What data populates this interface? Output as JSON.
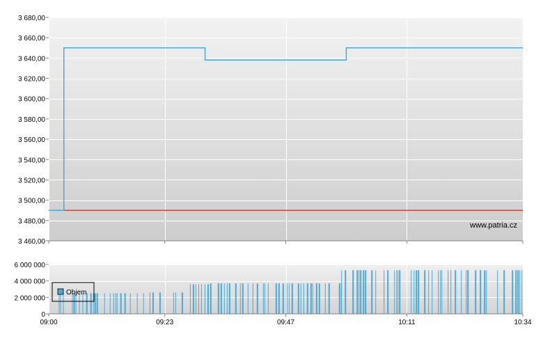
{
  "chart_data": [
    {
      "type": "line",
      "panel": "price",
      "x": [
        "09:00",
        "09:02",
        "09:03",
        "09:10",
        "09:20",
        "09:30",
        "09:31",
        "09:40",
        "09:50",
        "09:58",
        "09:59",
        "10:10",
        "10:20",
        "10:34"
      ],
      "series": [
        {
          "name": "",
          "color": "#4aa9d6",
          "values": [
            3490,
            3490,
            3650,
            3650,
            3650,
            3650,
            3638,
            3638,
            3638,
            3638,
            3650,
            3650,
            3650,
            3650
          ]
        },
        {
          "name": "",
          "color": "#d04a3a",
          "values": [
            3490,
            3490,
            3490,
            3490,
            3490,
            3490,
            3490,
            3490,
            3490,
            3490,
            3490,
            3490,
            3490,
            3490
          ]
        }
      ],
      "xlim": [
        "09:00",
        "10:34"
      ],
      "ylim": [
        3460,
        3680
      ],
      "yticks": [
        "3 460,00",
        "3 480,00",
        "3 500,00",
        "3 520,00",
        "3 540,00",
        "3 560,00",
        "3 580,00",
        "3 600,00",
        "3 620,00",
        "3 640,00",
        "3 660,00",
        "3 680,00"
      ],
      "ytick_values": [
        3460,
        3480,
        3500,
        3520,
        3540,
        3560,
        3580,
        3600,
        3620,
        3640,
        3660,
        3680
      ],
      "xticks": [
        "09:00",
        "09:23",
        "09:47",
        "10:11",
        "10:34"
      ],
      "grid": true,
      "annotation": "www.patria.cz"
    },
    {
      "type": "bar",
      "panel": "volume",
      "legend": {
        "label": "Objem",
        "placement": "left"
      },
      "series_color": "#4aa9d6",
      "segments": [
        {
          "from": "09:02",
          "to": "09:07",
          "value": 2500000
        },
        {
          "from": "09:07",
          "to": "09:20",
          "value": 2500000
        },
        {
          "from": "09:20",
          "to": "09:28",
          "value": 2600000
        },
        {
          "from": "09:28",
          "to": "09:32",
          "value": 3600000
        },
        {
          "from": "09:32",
          "to": "09:58",
          "value": 3700000
        },
        {
          "from": "09:58",
          "to": "10:34",
          "value": 5300000
        }
      ],
      "ylim": [
        0,
        6000000
      ],
      "yticks": [
        "0",
        "2 000 000",
        "4 000 000",
        "6 000 000"
      ],
      "ytick_values": [
        0,
        2000000,
        4000000,
        6000000
      ],
      "xticks": [
        "09:00",
        "09:23",
        "09:47",
        "10:11",
        "10:34"
      ],
      "grid": true
    }
  ]
}
